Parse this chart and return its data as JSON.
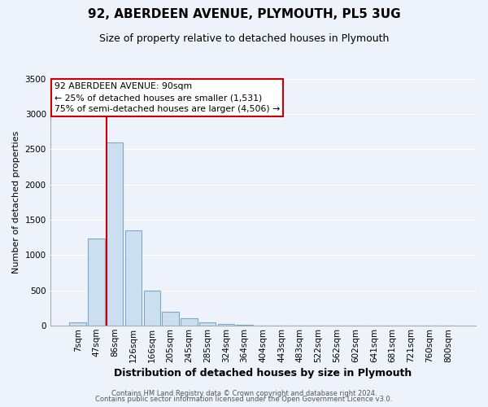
{
  "title": "92, ABERDEEN AVENUE, PLYMOUTH, PL5 3UG",
  "subtitle": "Size of property relative to detached houses in Plymouth",
  "xlabel": "Distribution of detached houses by size in Plymouth",
  "ylabel": "Number of detached properties",
  "footer_line1": "Contains HM Land Registry data © Crown copyright and database right 2024.",
  "footer_line2": "Contains public sector information licensed under the Open Government Licence v3.0.",
  "bar_labels": [
    "7sqm",
    "47sqm",
    "86sqm",
    "126sqm",
    "166sqm",
    "205sqm",
    "245sqm",
    "285sqm",
    "324sqm",
    "364sqm",
    "404sqm",
    "443sqm",
    "483sqm",
    "522sqm",
    "562sqm",
    "602sqm",
    "641sqm",
    "681sqm",
    "721sqm",
    "760sqm",
    "800sqm"
  ],
  "bar_values": [
    50,
    1230,
    2600,
    1350,
    500,
    200,
    110,
    50,
    30,
    15,
    0,
    0,
    0,
    0,
    0,
    0,
    0,
    0,
    0,
    0,
    0
  ],
  "bar_color": "#ccdff0",
  "bar_edge_color": "#7aaac8",
  "ylim": [
    0,
    3500
  ],
  "yticks": [
    0,
    500,
    1000,
    1500,
    2000,
    2500,
    3000,
    3500
  ],
  "vline_color": "#cc0000",
  "annotation_text": "92 ABERDEEN AVENUE: 90sqm\n← 25% of detached houses are smaller (1,531)\n75% of semi-detached houses are larger (4,506) →",
  "annotation_box_facecolor": "#ffffff",
  "annotation_box_edgecolor": "#cc0000",
  "bg_color": "#eef2fa",
  "plot_bg_color": "#eef2fa",
  "grid_color": "#ffffff",
  "title_fontsize": 11,
  "subtitle_fontsize": 9,
  "xlabel_fontsize": 9,
  "ylabel_fontsize": 8,
  "footer_fontsize": 6,
  "tick_fontsize": 7.5
}
